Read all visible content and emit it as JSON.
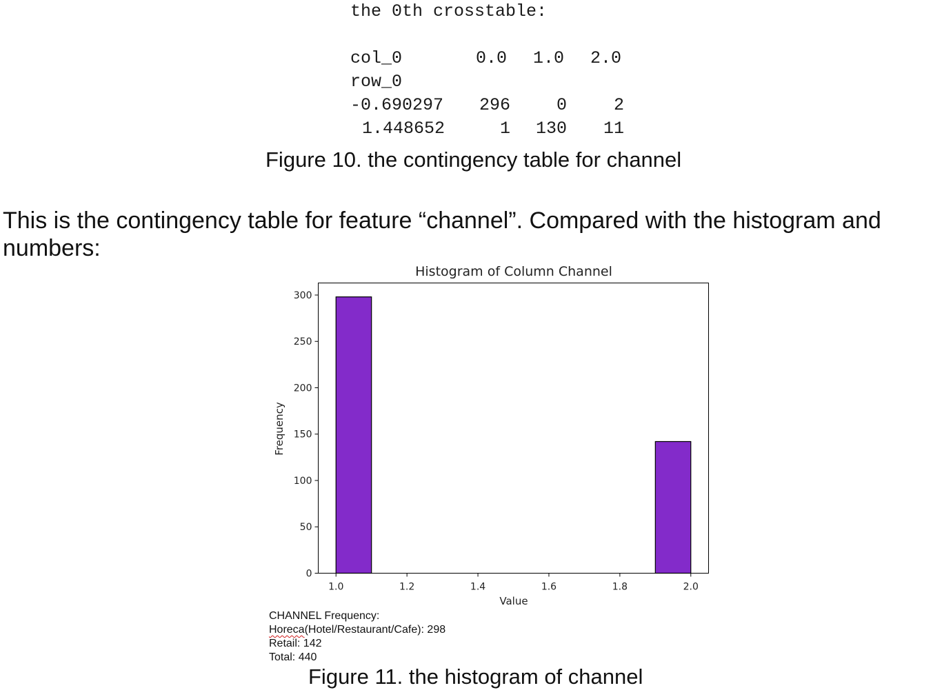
{
  "crosstable": {
    "title": "the 0th crosstable:",
    "col_label": "col_0",
    "row_label": "row_0",
    "columns": [
      "0.0",
      "1.0",
      "2.0"
    ],
    "rows": [
      {
        "index": "-0.690297",
        "values": [
          "296",
          "0",
          "2"
        ]
      },
      {
        "index": "1.448652",
        "values": [
          "1",
          "130",
          "11"
        ]
      }
    ]
  },
  "figure10_caption": "Figure 10. the contingency table for channel",
  "paragraph": {
    "line1": "This is the contingency table for feature “channel”. Compared with the histogram and",
    "line2": "numbers:"
  },
  "chart_data": {
    "type": "bar",
    "title": "Histogram of Column Channel",
    "xlabel": "Value",
    "ylabel": "Frequency",
    "xlim": [
      0.95,
      2.05
    ],
    "ylim": [
      0,
      313
    ],
    "xticks": [
      1.0,
      1.2,
      1.4,
      1.6,
      1.8,
      2.0
    ],
    "xtick_labels": [
      "1.0",
      "1.2",
      "1.4",
      "1.6",
      "1.8",
      "2.0"
    ],
    "yticks": [
      0,
      50,
      100,
      150,
      200,
      250,
      300
    ],
    "ytick_labels": [
      "0",
      "50",
      "100",
      "150",
      "200",
      "250",
      "300"
    ],
    "bins": [
      {
        "start": 1.0,
        "end": 1.1,
        "value": 298
      },
      {
        "start": 1.9,
        "end": 2.0,
        "value": 142
      }
    ],
    "bar_color": "#832bca",
    "edge_color": "#000000"
  },
  "frequency_notes": {
    "heading": "CHANNEL Frequency:",
    "horeca_word": "Horeca",
    "horeca_rest": "(Hotel/Restaurant/Cafe): 298",
    "retail": "Retail: 142",
    "total": "Total: 440"
  },
  "figure11_caption": "Figure 11. the histogram of channel"
}
